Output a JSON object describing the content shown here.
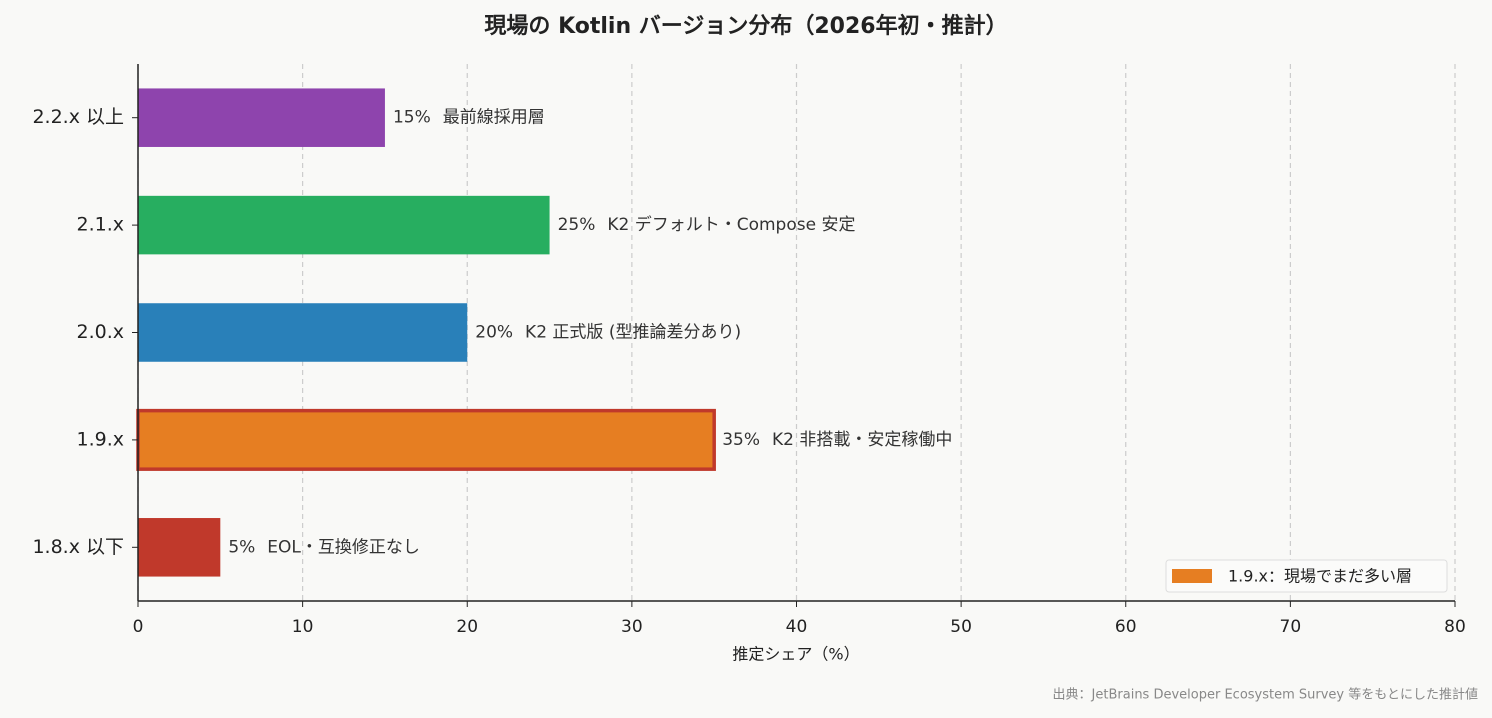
{
  "chart_data": {
    "type": "barh",
    "title": "現場の Kotlin バージョン分布（2026年初・推計）",
    "xlabel": "推定シェア（%）",
    "source": "出典：JetBrains Developer Ecosystem Survey 等をもとにした推計値",
    "categories": [
      "2.2.x 以上",
      "2.1.x",
      "2.0.x",
      "1.9.x",
      "1.8.x 以下"
    ],
    "values": [
      15,
      25,
      20,
      35,
      5
    ],
    "value_labels": [
      "15%",
      "25%",
      "20%",
      "35%",
      "5%"
    ],
    "annotations": [
      "最前線採用層",
      "K2 デフォルト・Compose 安定",
      "K2 正式版 (型推論差分あり)",
      "K2 非搭載・安定稼働中",
      "EOL・互換修正なし"
    ],
    "colors": [
      "#8e44ad",
      "#27ae60",
      "#2980b9",
      "#e67e22",
      "#c0392b"
    ],
    "highlight": {
      "index": 3,
      "edgecolor": "#c0392b"
    },
    "xlim": [
      0,
      80
    ],
    "xticks": [
      0,
      10,
      20,
      30,
      40,
      50,
      60,
      70,
      80
    ],
    "grid": true,
    "legend": {
      "label": "1.9.x：現場でまだ多い層",
      "color": "#e67e22",
      "loc": "lower right"
    }
  }
}
